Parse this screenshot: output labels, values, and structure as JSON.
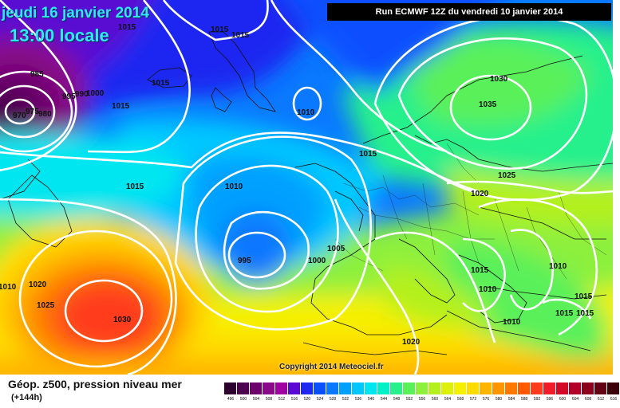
{
  "header": {
    "date_label": "jeudi 16 janvier 2014",
    "time_label": "13:00 locale",
    "run_label": "Run ECMWF 12Z du vendredi 10 janvier 2014"
  },
  "footer": {
    "title": "Géop. z500, pression niveau mer",
    "subtitle": "(+144h)",
    "copyright": "Copyright 2014 Meteociel.fr"
  },
  "legend": {
    "values": [
      "496",
      "500",
      "504",
      "508",
      "512",
      "516",
      "520",
      "524",
      "528",
      "532",
      "536",
      "540",
      "544",
      "548",
      "552",
      "556",
      "560",
      "564",
      "568",
      "572",
      "576",
      "580",
      "584",
      "588",
      "592",
      "596",
      "600",
      "604",
      "608",
      "612",
      "616"
    ],
    "colors": [
      "#2d0030",
      "#4b0050",
      "#6e006e",
      "#8a0a8a",
      "#a000a0",
      "#5a0ad2",
      "#1e28f0",
      "#0a50ff",
      "#0a78ff",
      "#00a0ff",
      "#00c8ff",
      "#00e6f0",
      "#00f0c8",
      "#28f08c",
      "#5af05a",
      "#8cf03c",
      "#b4f01e",
      "#dcf00a",
      "#f5f000",
      "#ffdc00",
      "#ffb400",
      "#ff9600",
      "#ff7800",
      "#ff5a00",
      "#ff3c1e",
      "#f01e28",
      "#d20a28",
      "#b40028",
      "#8c001e",
      "#640014",
      "#3c000a"
    ]
  },
  "isobar_labels": [
    "1015",
    "1015",
    "1015",
    "985",
    "975",
    "980",
    "970",
    "995",
    "990",
    "1000",
    "1015",
    "1010",
    "1015",
    "1015",
    "1010",
    "1015",
    "1030",
    "1035",
    "1025",
    "1020",
    "1015",
    "1010",
    "995",
    "1000",
    "1005",
    "1015",
    "1010",
    "1020",
    "1025",
    "1030",
    "1010",
    "1015",
    "1010",
    "1010",
    "1015",
    "1015",
    "1020"
  ]
}
